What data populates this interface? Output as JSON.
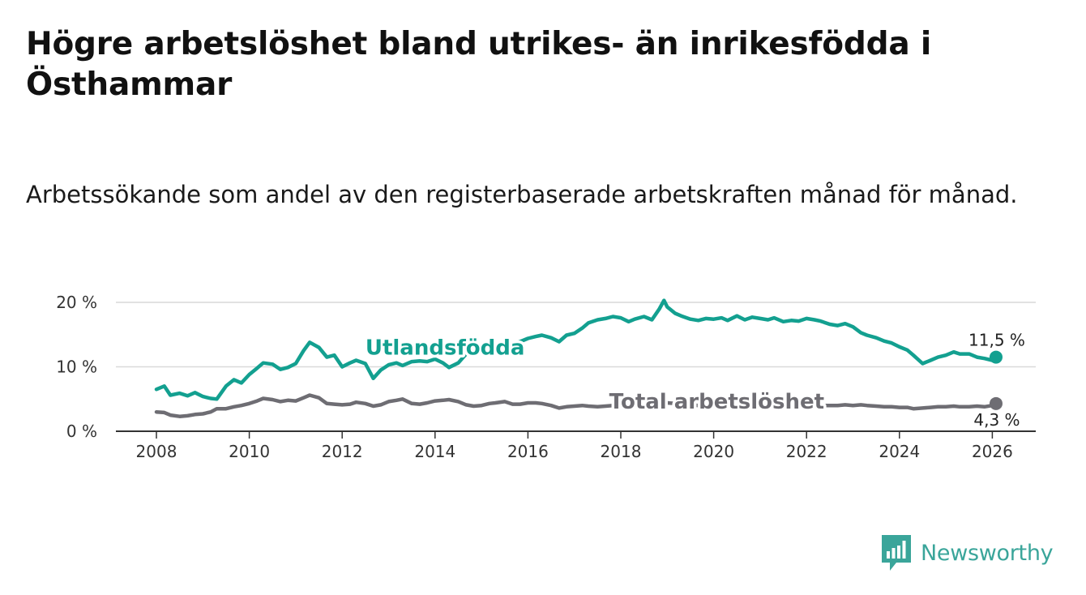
{
  "title": "Högre arbetslöshet bland utrikes- än inrikesfödda i Östhammar",
  "subtitle": "Arbetssökande som andel av den registerbaserade arbetskraften månad för månad.",
  "brand": {
    "name": "Newsworthy",
    "color": "#3aa59a"
  },
  "chart_data": {
    "type": "line",
    "x_range": [
      2007.5,
      2027
    ],
    "ylim": [
      0,
      20
    ],
    "x_ticks": [
      {
        "value": 2008,
        "label": "2008"
      },
      {
        "value": 2010,
        "label": "2010"
      },
      {
        "value": 2012,
        "label": "2012"
      },
      {
        "value": 2014,
        "label": "2014"
      },
      {
        "value": 2016,
        "label": "2016"
      },
      {
        "value": 2018,
        "label": "2018"
      },
      {
        "value": 2020,
        "label": "2020"
      },
      {
        "value": 2022,
        "label": "2022"
      },
      {
        "value": 2024,
        "label": "2024"
      },
      {
        "value": 2026,
        "label": "2026"
      }
    ],
    "y_ticks": [
      {
        "value": 0,
        "label": "0 %"
      },
      {
        "value": 10,
        "label": "10 %"
      },
      {
        "value": 20,
        "label": "20 %"
      }
    ],
    "grid": true,
    "series": [
      {
        "name": "Utlandsfödda",
        "color": "#13a090",
        "end_label": "11,5 %",
        "points": [
          [
            2008.0,
            6.5
          ],
          [
            2008.17,
            7.0
          ],
          [
            2008.3,
            5.6
          ],
          [
            2008.5,
            5.9
          ],
          [
            2008.67,
            5.5
          ],
          [
            2008.83,
            6.0
          ],
          [
            2009.0,
            5.4
          ],
          [
            2009.17,
            5.1
          ],
          [
            2009.3,
            5.0
          ],
          [
            2009.5,
            7.0
          ],
          [
            2009.67,
            8.0
          ],
          [
            2009.83,
            7.5
          ],
          [
            2010.0,
            8.8
          ],
          [
            2010.17,
            9.8
          ],
          [
            2010.3,
            10.6
          ],
          [
            2010.5,
            10.4
          ],
          [
            2010.67,
            9.6
          ],
          [
            2010.83,
            9.9
          ],
          [
            2011.0,
            10.5
          ],
          [
            2011.17,
            12.5
          ],
          [
            2011.3,
            13.8
          ],
          [
            2011.5,
            13.0
          ],
          [
            2011.67,
            11.5
          ],
          [
            2011.83,
            11.8
          ],
          [
            2012.0,
            10.0
          ],
          [
            2012.17,
            10.6
          ],
          [
            2012.3,
            11.0
          ],
          [
            2012.5,
            10.5
          ],
          [
            2012.67,
            8.2
          ],
          [
            2012.83,
            9.5
          ],
          [
            2013.0,
            10.3
          ],
          [
            2013.17,
            10.6
          ],
          [
            2013.3,
            10.2
          ],
          [
            2013.5,
            10.8
          ],
          [
            2013.67,
            10.9
          ],
          [
            2013.83,
            10.8
          ],
          [
            2014.0,
            11.2
          ],
          [
            2014.17,
            10.6
          ],
          [
            2014.3,
            9.9
          ],
          [
            2014.5,
            10.6
          ],
          [
            2014.67,
            12.0
          ],
          [
            2014.83,
            12.6
          ],
          [
            2015.0,
            12.9
          ],
          [
            2015.17,
            13.2
          ],
          [
            2015.3,
            13.3
          ],
          [
            2015.5,
            13.3
          ],
          [
            2015.67,
            13.6
          ],
          [
            2015.83,
            13.9
          ],
          [
            2016.0,
            14.4
          ],
          [
            2016.17,
            14.7
          ],
          [
            2016.3,
            14.9
          ],
          [
            2016.5,
            14.5
          ],
          [
            2016.67,
            13.9
          ],
          [
            2016.83,
            14.9
          ],
          [
            2017.0,
            15.2
          ],
          [
            2017.17,
            16.0
          ],
          [
            2017.3,
            16.8
          ],
          [
            2017.5,
            17.3
          ],
          [
            2017.67,
            17.5
          ],
          [
            2017.83,
            17.8
          ],
          [
            2018.0,
            17.6
          ],
          [
            2018.17,
            17.0
          ],
          [
            2018.3,
            17.4
          ],
          [
            2018.5,
            17.8
          ],
          [
            2018.67,
            17.3
          ],
          [
            2018.83,
            19.0
          ],
          [
            2018.93,
            20.3
          ],
          [
            2019.0,
            19.3
          ],
          [
            2019.17,
            18.3
          ],
          [
            2019.3,
            17.9
          ],
          [
            2019.5,
            17.4
          ],
          [
            2019.67,
            17.2
          ],
          [
            2019.83,
            17.5
          ],
          [
            2020.0,
            17.4
          ],
          [
            2020.17,
            17.6
          ],
          [
            2020.3,
            17.2
          ],
          [
            2020.5,
            17.9
          ],
          [
            2020.67,
            17.3
          ],
          [
            2020.83,
            17.7
          ],
          [
            2021.0,
            17.5
          ],
          [
            2021.17,
            17.3
          ],
          [
            2021.3,
            17.6
          ],
          [
            2021.5,
            17.0
          ],
          [
            2021.67,
            17.2
          ],
          [
            2021.83,
            17.1
          ],
          [
            2022.0,
            17.5
          ],
          [
            2022.17,
            17.3
          ],
          [
            2022.3,
            17.1
          ],
          [
            2022.5,
            16.6
          ],
          [
            2022.67,
            16.4
          ],
          [
            2022.83,
            16.7
          ],
          [
            2023.0,
            16.2
          ],
          [
            2023.17,
            15.3
          ],
          [
            2023.3,
            14.9
          ],
          [
            2023.5,
            14.5
          ],
          [
            2023.67,
            14.0
          ],
          [
            2023.83,
            13.7
          ],
          [
            2024.0,
            13.1
          ],
          [
            2024.17,
            12.6
          ],
          [
            2024.3,
            11.8
          ],
          [
            2024.5,
            10.5
          ],
          [
            2024.67,
            11.0
          ],
          [
            2024.83,
            11.5
          ],
          [
            2025.0,
            11.8
          ],
          [
            2025.17,
            12.3
          ],
          [
            2025.3,
            12.0
          ],
          [
            2025.5,
            12.0
          ],
          [
            2025.67,
            11.5
          ],
          [
            2025.83,
            11.3
          ],
          [
            2026.0,
            11.0
          ],
          [
            2026.08,
            11.5
          ]
        ]
      },
      {
        "name": "Total arbetslöshet",
        "color": "#6e6d73",
        "end_label": "4,3 %",
        "points": [
          [
            2008.0,
            3.0
          ],
          [
            2008.17,
            2.9
          ],
          [
            2008.3,
            2.5
          ],
          [
            2008.5,
            2.3
          ],
          [
            2008.67,
            2.4
          ],
          [
            2008.83,
            2.6
          ],
          [
            2009.0,
            2.7
          ],
          [
            2009.17,
            3.0
          ],
          [
            2009.3,
            3.5
          ],
          [
            2009.5,
            3.5
          ],
          [
            2009.67,
            3.8
          ],
          [
            2009.83,
            4.0
          ],
          [
            2010.0,
            4.3
          ],
          [
            2010.17,
            4.7
          ],
          [
            2010.3,
            5.1
          ],
          [
            2010.5,
            4.9
          ],
          [
            2010.67,
            4.6
          ],
          [
            2010.83,
            4.8
          ],
          [
            2011.0,
            4.7
          ],
          [
            2011.17,
            5.2
          ],
          [
            2011.3,
            5.6
          ],
          [
            2011.5,
            5.2
          ],
          [
            2011.67,
            4.3
          ],
          [
            2011.83,
            4.2
          ],
          [
            2012.0,
            4.1
          ],
          [
            2012.17,
            4.2
          ],
          [
            2012.3,
            4.5
          ],
          [
            2012.5,
            4.3
          ],
          [
            2012.67,
            3.9
          ],
          [
            2012.83,
            4.1
          ],
          [
            2013.0,
            4.6
          ],
          [
            2013.17,
            4.8
          ],
          [
            2013.3,
            5.0
          ],
          [
            2013.5,
            4.3
          ],
          [
            2013.67,
            4.2
          ],
          [
            2013.83,
            4.4
          ],
          [
            2014.0,
            4.7
          ],
          [
            2014.17,
            4.8
          ],
          [
            2014.3,
            4.9
          ],
          [
            2014.5,
            4.6
          ],
          [
            2014.67,
            4.1
          ],
          [
            2014.83,
            3.9
          ],
          [
            2015.0,
            4.0
          ],
          [
            2015.17,
            4.3
          ],
          [
            2015.3,
            4.4
          ],
          [
            2015.5,
            4.6
          ],
          [
            2015.67,
            4.2
          ],
          [
            2015.83,
            4.2
          ],
          [
            2016.0,
            4.4
          ],
          [
            2016.17,
            4.4
          ],
          [
            2016.3,
            4.3
          ],
          [
            2016.5,
            4.0
          ],
          [
            2016.67,
            3.6
          ],
          [
            2016.83,
            3.8
          ],
          [
            2017.0,
            3.9
          ],
          [
            2017.17,
            4.0
          ],
          [
            2017.3,
            3.9
          ],
          [
            2017.5,
            3.8
          ],
          [
            2017.67,
            3.9
          ],
          [
            2017.83,
            4.0
          ],
          [
            2018.0,
            4.1
          ],
          [
            2018.17,
            4.0
          ],
          [
            2018.3,
            4.1
          ],
          [
            2018.5,
            4.2
          ],
          [
            2018.67,
            4.1
          ],
          [
            2018.83,
            4.3
          ],
          [
            2019.0,
            4.4
          ],
          [
            2019.17,
            4.3
          ],
          [
            2019.3,
            4.2
          ],
          [
            2019.5,
            4.1
          ],
          [
            2019.67,
            4.0
          ],
          [
            2019.83,
            4.1
          ],
          [
            2020.0,
            4.2
          ],
          [
            2020.17,
            4.3
          ],
          [
            2020.3,
            4.1
          ],
          [
            2020.5,
            4.2
          ],
          [
            2020.67,
            4.0
          ],
          [
            2020.83,
            4.1
          ],
          [
            2021.0,
            4.1
          ],
          [
            2021.17,
            4.0
          ],
          [
            2021.3,
            4.1
          ],
          [
            2021.5,
            4.0
          ],
          [
            2021.67,
            4.0
          ],
          [
            2021.83,
            4.0
          ],
          [
            2022.0,
            4.1
          ],
          [
            2022.17,
            4.0
          ],
          [
            2022.3,
            4.0
          ],
          [
            2022.5,
            4.0
          ],
          [
            2022.67,
            4.0
          ],
          [
            2022.83,
            4.1
          ],
          [
            2023.0,
            4.0
          ],
          [
            2023.17,
            4.1
          ],
          [
            2023.3,
            4.0
          ],
          [
            2023.5,
            3.9
          ],
          [
            2023.67,
            3.8
          ],
          [
            2023.83,
            3.8
          ],
          [
            2024.0,
            3.7
          ],
          [
            2024.17,
            3.7
          ],
          [
            2024.3,
            3.5
          ],
          [
            2024.5,
            3.6
          ],
          [
            2024.67,
            3.7
          ],
          [
            2024.83,
            3.8
          ],
          [
            2025.0,
            3.8
          ],
          [
            2025.17,
            3.9
          ],
          [
            2025.3,
            3.8
          ],
          [
            2025.5,
            3.8
          ],
          [
            2025.67,
            3.9
          ],
          [
            2025.83,
            3.8
          ],
          [
            2026.0,
            4.0
          ],
          [
            2026.08,
            4.3
          ]
        ]
      }
    ]
  }
}
